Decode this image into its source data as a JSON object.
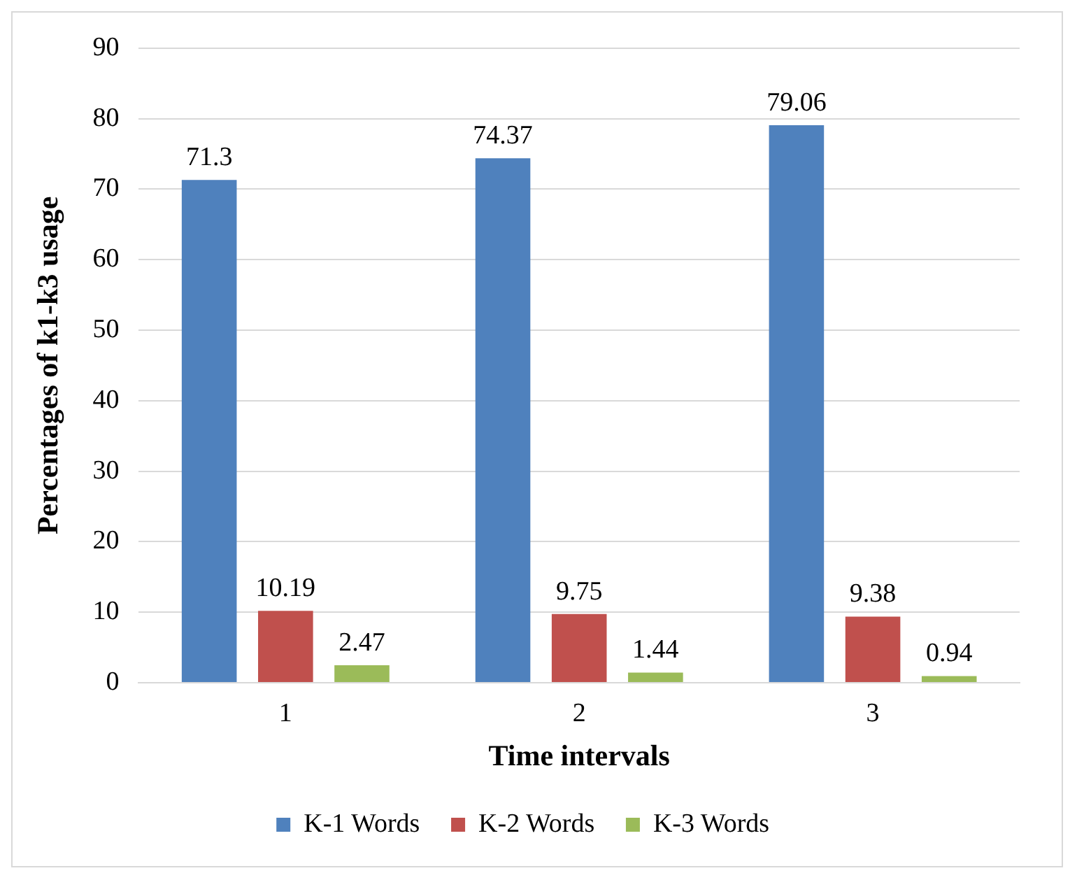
{
  "chart_data": {
    "type": "bar",
    "xlabel": "Time intervals",
    "ylabel": "Percentages of k1-k3 usage",
    "categories": [
      "1",
      "2",
      "3"
    ],
    "series": [
      {
        "name": "K-1 Words",
        "color": "#4f81bd",
        "values": [
          71.3,
          74.37,
          79.06
        ]
      },
      {
        "name": "K-2 Words",
        "color": "#c0504d",
        "values": [
          10.19,
          9.75,
          9.38
        ]
      },
      {
        "name": "K-3 Words",
        "color": "#9bbb59",
        "values": [
          2.47,
          1.44,
          0.94
        ]
      }
    ],
    "ylim": [
      0,
      90
    ],
    "yticks": [
      0,
      10,
      20,
      30,
      40,
      50,
      60,
      70,
      80,
      90
    ],
    "grid": "y",
    "legend": "bottom",
    "data_labels": true
  }
}
